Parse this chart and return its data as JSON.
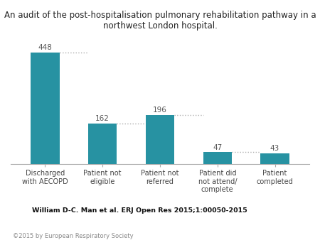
{
  "categories": [
    "Discharged\nwith AECOPD",
    "Patient not\neligible",
    "Patient not\nreferred",
    "Patient did\nnot attend/\ncomplete",
    "Patient\ncompleted"
  ],
  "values": [
    448,
    162,
    196,
    47,
    43
  ],
  "bar_color": "#2792a2",
  "title": "An audit of the post-hospitalisation pulmonary rehabilitation pathway in a northwest London hospital.",
  "title_fontsize": 8.5,
  "bar_width": 0.5,
  "ylim": [
    0,
    510
  ],
  "citation": "William D-C. Man et al. ERJ Open Res 2015;1:00050-2015",
  "copyright": "©2015 by European Respiratory Society",
  "dotted_line_color": "#b0b0b0",
  "background_color": "#ffffff",
  "label_fontsize": 7,
  "value_fontsize": 7.5,
  "citation_fontsize": 6.8,
  "copyright_fontsize": 6.0
}
